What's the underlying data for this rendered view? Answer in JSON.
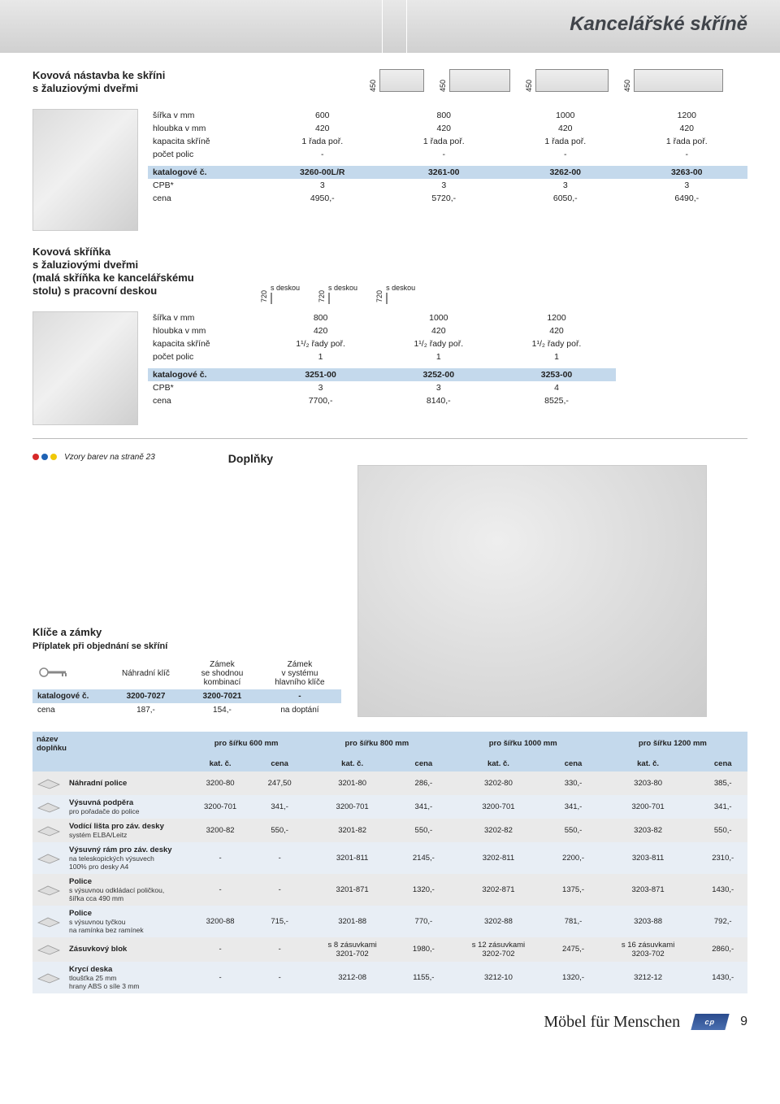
{
  "colors": {
    "blue_band": "#c4d9ec",
    "header_text": "#40444a",
    "swatch_red": "#d62828",
    "swatch_blue": "#1e62b4",
    "swatch_yellow": "#f0c808"
  },
  "header": {
    "title": "Kancelářské skříně"
  },
  "section1": {
    "title": "Kovová nástavba ke skříni\ns žaluziovými dveřmi",
    "top_icon_dim": "450",
    "rows": {
      "sirka_label": "šířka v mm",
      "sirka": [
        "600",
        "800",
        "1000",
        "1200"
      ],
      "hloubka_label": "hloubka v mm",
      "hloubka": [
        "420",
        "420",
        "420",
        "420"
      ],
      "kapacita_label": "kapacita skříně",
      "kapacita": [
        "1 řada poř.",
        "1 řada poř.",
        "1 řada poř.",
        "1 řada poř."
      ],
      "police_label": "počet polic",
      "police": [
        "-",
        "-",
        "-",
        "-"
      ]
    },
    "kat_label": "katalogové č.",
    "kat": [
      "3260-00L/R",
      "3261-00",
      "3262-00",
      "3263-00"
    ],
    "cpb_label": "CPB*",
    "cpb": [
      "3",
      "3",
      "3",
      "3"
    ],
    "cena_label": "cena",
    "cena": [
      "4950,-",
      "5720,-",
      "6050,-",
      "6490,-"
    ]
  },
  "section2": {
    "title": "Kovová skříňka\ns žaluziovými dveřmi\n(malá skříňka ke kancelářskému\nstolu) s pracovní deskou",
    "mid_icon_dim": "720",
    "mid_icon_label": "s deskou",
    "rows": {
      "sirka_label": "šířka v mm",
      "sirka": [
        "800",
        "1000",
        "1200"
      ],
      "hloubka_label": "hloubka v mm",
      "hloubka": [
        "420",
        "420",
        "420"
      ],
      "kapacita_label": "kapacita skříně",
      "kapacita": [
        "1¹/₂ řady poř.",
        "1¹/₂ řady poř.",
        "1¹/₂ řady poř."
      ],
      "police_label": "počet polic",
      "police": [
        "1",
        "1",
        "1"
      ]
    },
    "kat_label": "katalogové č.",
    "kat": [
      "3251-00",
      "3252-00",
      "3253-00"
    ],
    "cpb_label": "CPB*",
    "cpb": [
      "3",
      "3",
      "4"
    ],
    "cena_label": "cena",
    "cena": [
      "7700,-",
      "8140,-",
      "8525,-"
    ]
  },
  "swatch_note": "Vzory barev na straně 23",
  "supp_heading": "Doplňky",
  "keys": {
    "title": "Klíče a zámky",
    "subtitle": "Příplatek při objednání se skříní",
    "cols": [
      "Náhradní klíč",
      "Zámek\nse shodnou\nkombinací",
      "Zámek\nv systému\nhlavního klíče"
    ],
    "kat_label": "katalogové č.",
    "kat": [
      "3200-7027",
      "3200-7021",
      "-"
    ],
    "cena_label": "cena",
    "cena": [
      "187,-",
      "154,-",
      "na doptání"
    ]
  },
  "accessories": {
    "head_name": "název\ndoplňku",
    "col_heads": [
      "pro šířku 600 mm",
      "pro šířku 800 mm",
      "pro šířku 1000 mm",
      "pro šířku 1200 mm"
    ],
    "sub_heads": [
      "kat. č.",
      "cena"
    ],
    "rows": [
      {
        "name": "Náhradní police",
        "sub": "",
        "vals": [
          [
            "3200-80",
            "247,50"
          ],
          [
            "3201-80",
            "286,-"
          ],
          [
            "3202-80",
            "330,-"
          ],
          [
            "3203-80",
            "385,-"
          ]
        ]
      },
      {
        "name": "Výsuvná podpěra",
        "sub": "pro pořadače do police",
        "vals": [
          [
            "3200-701",
            "341,-"
          ],
          [
            "3200-701",
            "341,-"
          ],
          [
            "3200-701",
            "341,-"
          ],
          [
            "3200-701",
            "341,-"
          ]
        ]
      },
      {
        "name": "Vodící lišta pro záv. desky",
        "sub": "systém ELBA/Leitz",
        "vals": [
          [
            "3200-82",
            "550,-"
          ],
          [
            "3201-82",
            "550,-"
          ],
          [
            "3202-82",
            "550,-"
          ],
          [
            "3203-82",
            "550,-"
          ]
        ]
      },
      {
        "name": "Výsuvný rám pro záv. desky",
        "sub": "na teleskopických výsuvech\n100% pro desky A4",
        "vals": [
          [
            "-",
            "-"
          ],
          [
            "3201-811",
            "2145,-"
          ],
          [
            "3202-811",
            "2200,-"
          ],
          [
            "3203-811",
            "2310,-"
          ]
        ]
      },
      {
        "name": "Police",
        "sub": "s výsuvnou odkládací poličkou,\nšířka cca 490 mm",
        "vals": [
          [
            "-",
            "-"
          ],
          [
            "3201-871",
            "1320,-"
          ],
          [
            "3202-871",
            "1375,-"
          ],
          [
            "3203-871",
            "1430,-"
          ]
        ]
      },
      {
        "name": "Police",
        "sub": "s výsuvnou tyčkou\nna ramínka  bez ramínek",
        "vals": [
          [
            "3200-88",
            "715,-"
          ],
          [
            "3201-88",
            "770,-"
          ],
          [
            "3202-88",
            "781,-"
          ],
          [
            "3203-88",
            "792,-"
          ]
        ]
      },
      {
        "name": "Zásuvkový blok",
        "sub": "",
        "vals": [
          [
            "-",
            "-"
          ],
          [
            "s 8 zásuvkami\n3201-702",
            "1980,-"
          ],
          [
            "s 12 zásuvkami\n3202-702",
            "2475,-"
          ],
          [
            "s 16 zásuvkami\n3203-702",
            "2860,-"
          ]
        ]
      },
      {
        "name": "Krycí deska",
        "sub": "tloušťka 25 mm\nhrany ABS o síle 3 mm",
        "vals": [
          [
            "-",
            "-"
          ],
          [
            "3212-08",
            "1155,-"
          ],
          [
            "3212-10",
            "1320,-"
          ],
          [
            "3212-12",
            "1430,-"
          ]
        ]
      }
    ]
  },
  "footer": {
    "motto": "Möbel für Menschen",
    "badge": "cp",
    "page": "9"
  }
}
